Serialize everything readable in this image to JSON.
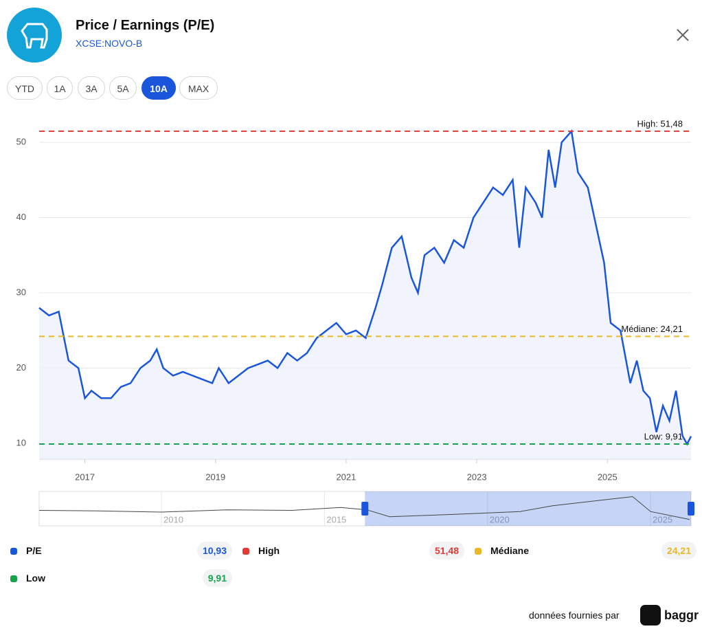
{
  "header": {
    "title": "Price / Earnings (P/E)",
    "subtitle": "XCSE:NOVO-B"
  },
  "range_buttons": [
    "YTD",
    "1A",
    "3A",
    "5A",
    "10A",
    "MAX"
  ],
  "active_range_index": 4,
  "chart_data": {
    "type": "line",
    "x": [
      2016.3,
      2016.45,
      2016.6,
      2016.75,
      2016.9,
      2017.0,
      2017.1,
      2017.25,
      2017.4,
      2017.55,
      2017.7,
      2017.85,
      2018.0,
      2018.1,
      2018.2,
      2018.35,
      2018.5,
      2018.65,
      2018.8,
      2018.95,
      2019.05,
      2019.2,
      2019.35,
      2019.5,
      2019.65,
      2019.8,
      2019.95,
      2020.1,
      2020.25,
      2020.4,
      2020.55,
      2020.7,
      2020.85,
      2021.0,
      2021.15,
      2021.3,
      2021.45,
      2021.55,
      2021.7,
      2021.85,
      2022.0,
      2022.1,
      2022.2,
      2022.35,
      2022.5,
      2022.65,
      2022.8,
      2022.95,
      2023.1,
      2023.25,
      2023.4,
      2023.55,
      2023.65,
      2023.75,
      2023.9,
      2024.0,
      2024.1,
      2024.2,
      2024.3,
      2024.45,
      2024.55,
      2024.7,
      2024.85,
      2024.95,
      2025.05,
      2025.2,
      2025.35,
      2025.45,
      2025.55,
      2025.65,
      2025.75,
      2025.85,
      2025.95,
      2026.05,
      2026.15,
      2026.22,
      2026.28
    ],
    "series": [
      {
        "name": "P/E",
        "color": "#1a56db",
        "values": [
          28,
          27,
          27.5,
          21,
          20,
          16,
          17,
          16,
          16,
          17.5,
          18,
          20,
          21,
          22.5,
          20,
          19,
          19.5,
          19,
          18.5,
          18,
          20,
          18,
          19,
          20,
          20.5,
          21,
          20,
          22,
          21,
          22,
          24,
          25,
          26,
          24.5,
          25,
          24,
          28,
          31,
          36,
          37.5,
          32,
          30,
          35,
          36,
          34,
          37,
          36,
          40,
          42,
          44,
          43,
          45,
          36,
          44,
          42,
          40,
          49,
          44,
          50,
          51.48,
          46,
          44,
          38,
          34,
          26,
          25,
          18,
          21,
          17,
          16,
          11.5,
          15,
          13,
          17,
          11,
          9.91,
          10.93
        ]
      }
    ],
    "xlim": [
      2016.3,
      2026.28
    ],
    "xticks": [
      2017,
      2019,
      2021,
      2023,
      2025
    ],
    "ylim": [
      7.9,
      54.3
    ],
    "yticks": [
      10,
      20,
      30,
      40,
      50
    ],
    "grid": true,
    "reference_lines": [
      {
        "value": 51.48,
        "label": "High: 51,48",
        "color": "#e53935"
      },
      {
        "value": 24.21,
        "label": "Médiane: 24,21",
        "color": "#e8b923"
      },
      {
        "value": 9.91,
        "label": "Low: 9,91",
        "color": "#16a34a"
      }
    ],
    "legend": [
      {
        "name": "P/E",
        "color": "#1a56db",
        "value": 10.93,
        "label": "10,93"
      },
      {
        "name": "High",
        "color": "#e53935",
        "value": 51.48,
        "label": "51,48"
      },
      {
        "name": "Médiane",
        "color": "#e8b923",
        "value": 24.21,
        "label": "24,21"
      },
      {
        "name": "Low",
        "color": "#16a34a",
        "value": 9.91,
        "label": "9,91"
      }
    ],
    "navigator": {
      "x": [
        2006.25,
        2008,
        2010,
        2012,
        2014,
        2015.5,
        2016.3,
        2017,
        2019,
        2021,
        2022,
        2024.45,
        2025,
        2026.2
      ],
      "values": [
        27,
        26,
        24,
        28,
        27,
        32,
        28,
        16,
        20,
        25,
        35,
        51,
        25,
        11
      ],
      "xlim": [
        2006.25,
        2026.24
      ],
      "ylim": [
        0,
        60
      ],
      "xticks": [
        2010,
        2015,
        2020,
        2025
      ],
      "selection": [
        2016.24,
        2026.24
      ]
    }
  },
  "footer": {
    "text": "données fournies par",
    "brand": "baggr"
  }
}
